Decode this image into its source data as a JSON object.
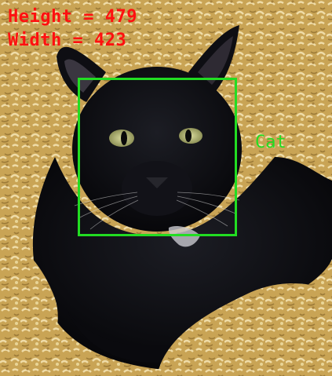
{
  "image": {
    "subject": "cat-photo",
    "colors": {
      "annotation_text": "#ff1010",
      "detection": "#22dd22",
      "fur": "#0d0d12",
      "blanket": "#c9a455",
      "eye": "#b9bd7a"
    }
  },
  "overlay": {
    "height_label": "Height = 479",
    "width_label": "Width = 423"
  },
  "detection": {
    "label": "Cat"
  }
}
